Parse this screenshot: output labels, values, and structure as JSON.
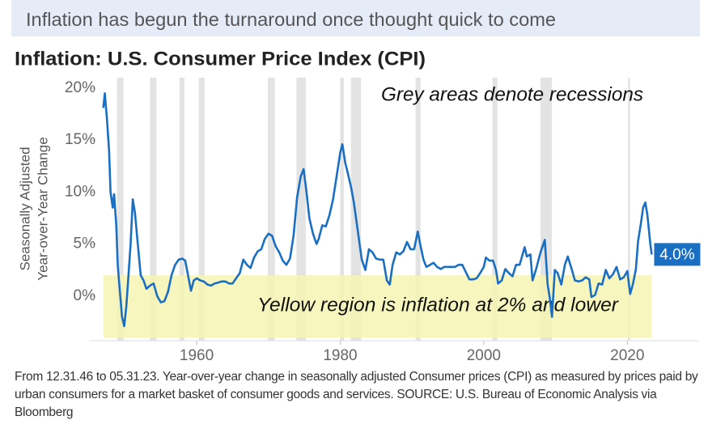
{
  "header": {
    "title": "Inflation has begun the turnaround once thought quick to come"
  },
  "chart_data": {
    "type": "line",
    "title": "Inflation: U.S. Consumer Price Index (CPI)",
    "ylabel": [
      "Seasonally Adjusted",
      "Year-over-Year Change"
    ],
    "annotations": [
      "Grey areas denote recessions",
      "Yellow region is inflation at 2% and lower"
    ],
    "footer": "From 12.31.46 to 05.31.23. Year-over-year change in seasonally adjusted Consumer prices (CPI) as measured by prices paid by urban consumers for a market basket of consumer goods and services. SOURCE: U.S. Bureau of Economic Analysis via Bloomberg",
    "xlim": [
      1945,
      2030
    ],
    "xticks": [
      1960,
      1980,
      2000,
      2020
    ],
    "ylim": [
      -4.3,
      21
    ],
    "yticks": [
      {
        "value": 0,
        "label": "0%"
      },
      {
        "value": 5,
        "label": "5%"
      },
      {
        "value": 10,
        "label": "10%"
      },
      {
        "value": 15,
        "label": "15%"
      },
      {
        "value": 20,
        "label": "20%"
      }
    ],
    "band": {
      "from": -4,
      "to": 2,
      "color": "#f6f5b4"
    },
    "recession_color": "#e3e3e3",
    "recessions": [
      [
        1948.9,
        1949.8
      ],
      [
        1953.5,
        1954.4
      ],
      [
        1957.6,
        1958.3
      ],
      [
        1960.3,
        1961.1
      ],
      [
        1969.9,
        1970.9
      ],
      [
        1973.9,
        1975.2
      ],
      [
        1980.0,
        1980.5
      ],
      [
        1981.5,
        1982.9
      ],
      [
        1990.5,
        1991.2
      ],
      [
        2001.2,
        2001.9
      ],
      [
        2007.9,
        2009.5
      ],
      [
        2020.1,
        2020.4
      ]
    ],
    "end_label": {
      "value": 4.0,
      "label": "4.0%"
    },
    "series": [
      {
        "name": "CPI",
        "color": "#1b6fc2",
        "x": [
          1947.0,
          1947.2,
          1947.5,
          1947.8,
          1948.0,
          1948.3,
          1948.5,
          1948.8,
          1949.0,
          1949.3,
          1949.6,
          1949.9,
          1950.2,
          1950.5,
          1950.8,
          1951.1,
          1951.4,
          1951.8,
          1952.2,
          1952.6,
          1953.0,
          1953.5,
          1954.0,
          1954.5,
          1955.0,
          1955.5,
          1956.0,
          1956.5,
          1957.0,
          1957.5,
          1958.0,
          1958.4,
          1958.8,
          1959.2,
          1959.6,
          1960.0,
          1960.5,
          1961.0,
          1961.5,
          1962.0,
          1962.5,
          1963.0,
          1963.5,
          1964.0,
          1964.5,
          1965.0,
          1965.5,
          1966.0,
          1966.5,
          1967.0,
          1967.5,
          1968.0,
          1968.5,
          1969.0,
          1969.5,
          1970.0,
          1970.5,
          1971.0,
          1971.5,
          1972.0,
          1972.5,
          1973.0,
          1973.5,
          1974.0,
          1974.5,
          1974.9,
          1975.3,
          1975.7,
          1976.2,
          1976.7,
          1977.0,
          1977.5,
          1978.0,
          1978.5,
          1979.0,
          1979.5,
          1980.0,
          1980.3,
          1980.7,
          1981.0,
          1981.5,
          1981.9,
          1982.3,
          1982.7,
          1983.0,
          1983.5,
          1984.0,
          1984.5,
          1985.0,
          1985.5,
          1986.0,
          1986.5,
          1986.9,
          1987.3,
          1987.8,
          1988.3,
          1988.8,
          1989.3,
          1989.8,
          1990.3,
          1990.8,
          1991.2,
          1991.6,
          1992.0,
          1992.5,
          1993.0,
          1993.5,
          1994.0,
          1994.5,
          1995.0,
          1995.5,
          1996.0,
          1996.5,
          1997.0,
          1997.5,
          1998.0,
          1998.5,
          1999.0,
          1999.5,
          2000.0,
          2000.3,
          2000.8,
          2001.3,
          2001.7,
          2002.0,
          2002.5,
          2003.0,
          2003.5,
          2004.0,
          2004.5,
          2005.0,
          2005.7,
          2006.0,
          2006.5,
          2006.8,
          2007.3,
          2007.9,
          2008.5,
          2008.9,
          2009.2,
          2009.5,
          2009.9,
          2010.3,
          2010.8,
          2011.3,
          2011.7,
          2012.2,
          2012.7,
          2013.2,
          2013.7,
          2014.2,
          2014.7,
          2015.0,
          2015.5,
          2016.0,
          2016.5,
          2017.0,
          2017.5,
          2018.0,
          2018.5,
          2019.0,
          2019.5,
          2020.0,
          2020.4,
          2020.8,
          2021.2,
          2021.5,
          2021.9,
          2022.2,
          2022.5,
          2022.8,
          2023.0,
          2023.2,
          2023.4
        ],
        "values": [
          18.1,
          19.5,
          17,
          14,
          10,
          8.5,
          9.8,
          6.8,
          3,
          0.5,
          -2,
          -2.9,
          -1,
          2,
          5,
          9.3,
          8,
          5,
          2,
          1.5,
          0.7,
          1,
          1.2,
          0,
          -0.6,
          -0.5,
          0.4,
          2,
          3,
          3.5,
          3.6,
          3.4,
          2,
          0.5,
          1.5,
          1.7,
          1.5,
          1.4,
          1.1,
          1,
          1.2,
          1.3,
          1.4,
          1.4,
          1.2,
          1.2,
          1.7,
          2.2,
          3.5,
          3,
          2.7,
          3.7,
          4.3,
          4.5,
          5.5,
          6,
          5.8,
          4.8,
          4.2,
          3.4,
          3,
          3.6,
          5.8,
          9.5,
          11.5,
          12.2,
          10,
          7.5,
          6,
          5,
          5.5,
          6.8,
          6.7,
          7.8,
          9.3,
          11.5,
          13.8,
          14.6,
          12.8,
          12,
          10.5,
          9,
          7,
          5,
          3.5,
          2.5,
          4.5,
          4.2,
          3.6,
          3.5,
          3.5,
          1.5,
          1.1,
          3,
          4.2,
          4,
          4.3,
          5.2,
          4.5,
          4.5,
          6.2,
          4.8,
          3.5,
          2.8,
          3,
          3.2,
          2.8,
          2.6,
          2.8,
          2.8,
          2.8,
          2.8,
          3,
          3,
          2.3,
          1.6,
          1.6,
          1.7,
          2.2,
          2.8,
          3.7,
          3.4,
          3.4,
          2.5,
          1.2,
          1.5,
          2.6,
          2.2,
          1.9,
          3,
          3,
          4.7,
          3.8,
          4,
          1.5,
          2.6,
          4.2,
          5.4,
          1.1,
          -0.2,
          -2,
          2.5,
          2.2,
          1.1,
          3,
          3.8,
          2.7,
          1.5,
          1.4,
          1.5,
          1.8,
          1.6,
          -0.1,
          0.1,
          1.2,
          1.1,
          2.5,
          1.7,
          2.1,
          2.8,
          1.6,
          1.8,
          2.4,
          0.2,
          1.2,
          2.6,
          5.3,
          7,
          8.5,
          9,
          7.8,
          6.4,
          5,
          4.0
        ]
      }
    ]
  }
}
